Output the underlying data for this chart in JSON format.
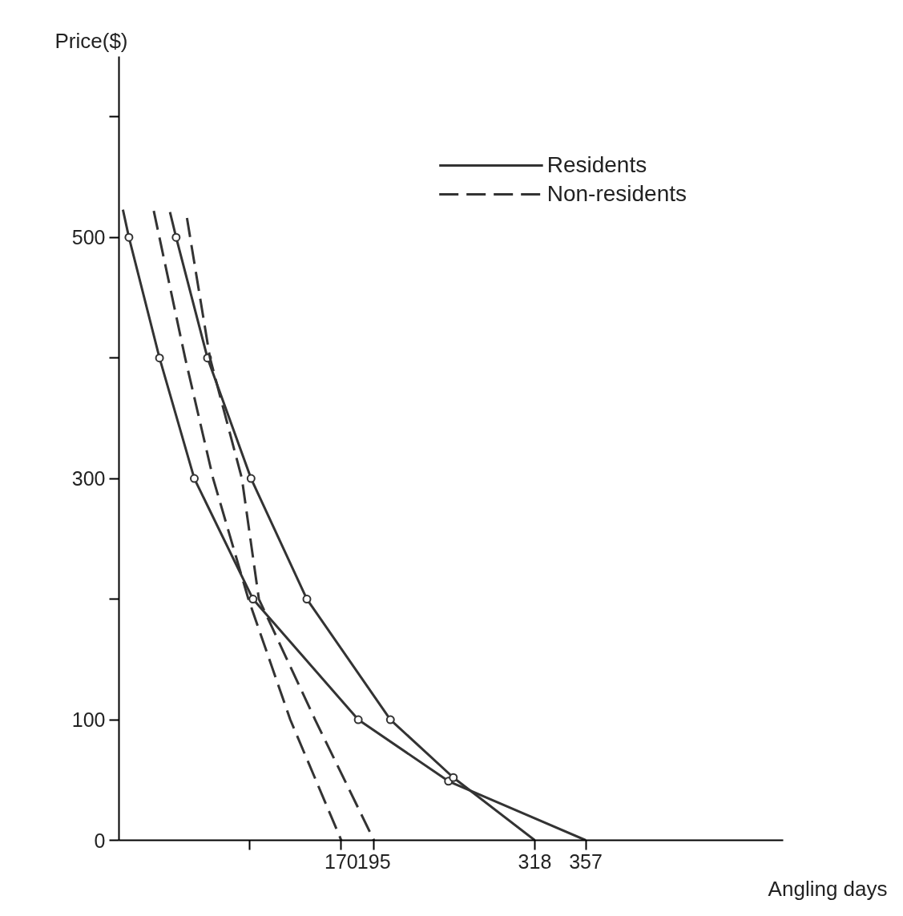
{
  "chart_data": {
    "type": "line",
    "ylabel": "Price($)",
    "xlabel": "Angling days",
    "xlim": [
      0,
      508
    ],
    "ylim": [
      0,
      650
    ],
    "xticks": [
      {
        "value": 100,
        "label": null
      },
      170,
      195,
      318,
      357
    ],
    "yticks": [
      0,
      100,
      {
        "value": 200,
        "label": null
      },
      300,
      {
        "value": 400,
        "label": null
      },
      500,
      {
        "value": 600,
        "label": null
      }
    ],
    "grid": false,
    "legend": "top right",
    "series": [
      {
        "name": "Residents",
        "color": "#333333",
        "line_style": "solid",
        "marker": "circle",
        "x": [
          3,
          7.6,
          31,
          57.6,
          102.5,
          183,
          252,
          357
        ],
        "values": [
          523,
          500,
          400,
          300,
          200,
          100,
          49,
          0
        ]
      },
      {
        "color": "#333333",
        "line_style": "solid",
        "marker": "circle",
        "x": [
          39,
          43.7,
          67.7,
          101,
          143.7,
          207.6,
          255.7,
          318
        ],
        "values": [
          521,
          500,
          400,
          300,
          200,
          100,
          52,
          0
        ]
      },
      {
        "name": "Non-residents",
        "color": "#333333",
        "line_style": "dashed",
        "marker": "none",
        "x": [
          26.6,
          50.6,
          72,
          99,
          131,
          170
        ],
        "values": [
          522,
          400,
          300,
          200,
          100,
          0
        ]
      },
      {
        "color": "#333333",
        "line_style": "dashed",
        "marker": "none",
        "x": [
          52,
          69.6,
          94,
          107,
          150,
          195
        ],
        "values": [
          516,
          400,
          300,
          200,
          100,
          0
        ]
      }
    ]
  }
}
